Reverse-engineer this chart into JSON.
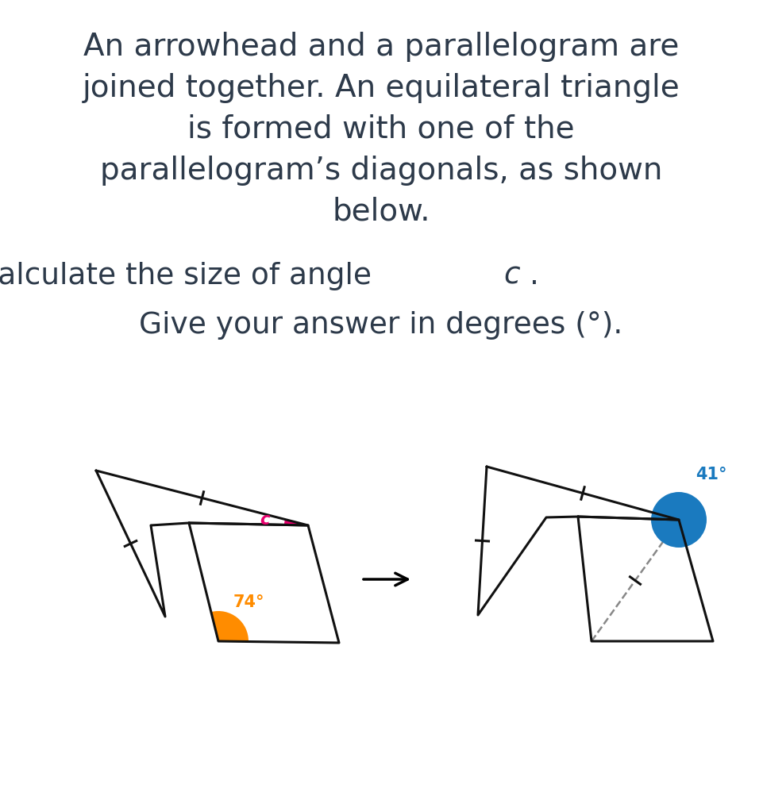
{
  "bg_color": "#ffffff",
  "text_color": "#2d3a4a",
  "title_lines": [
    "An arrowhead and a parallelogram are",
    "joined together. An equilateral triangle",
    "is formed with one of the",
    "parallelogram’s diagonals, as shown",
    "below."
  ],
  "angle_74_color": "#ff8c00",
  "angle_c_color": "#e8006e",
  "angle_41_color": "#1a7abf",
  "shape_color": "#111111",
  "dashed_color": "#888888",
  "fig_width": 9.61,
  "fig_height": 9.93
}
